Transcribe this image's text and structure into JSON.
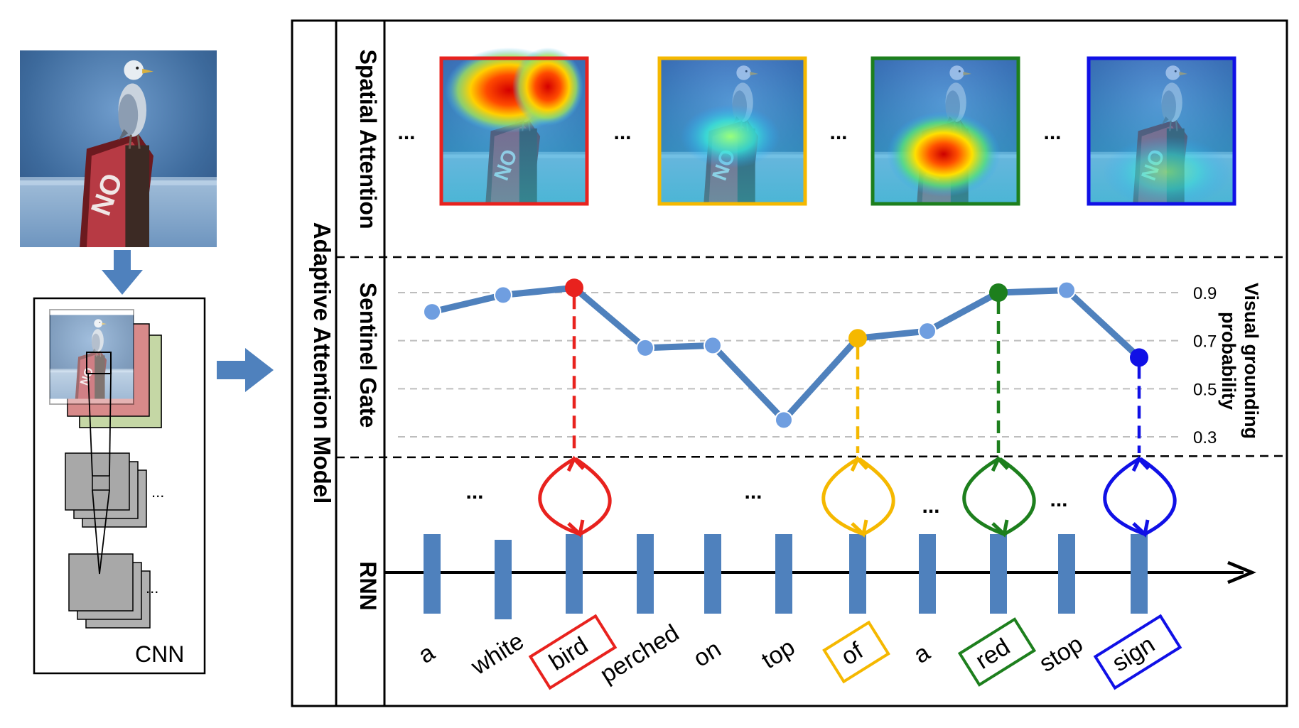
{
  "labels": {
    "cnn": "CNN",
    "model": "Adaptive  Attention  Model",
    "spatial": "Spatial Attention",
    "sentinel": "Sentinel Gate",
    "rnn": "RNN",
    "axis_line1": "Visual  grounding",
    "axis_line2": "probability",
    "ellipsis": "...",
    "ellipsis_small": "..."
  },
  "chart_data": {
    "type": "line",
    "title": "Sentinel Gate",
    "ylabel": "Visual grounding probability",
    "yticks": [
      "0.9",
      "0.7",
      "0.5",
      "0.3"
    ],
    "ytick_values": [
      0.9,
      0.7,
      0.5,
      0.3
    ],
    "ylim": [
      0.3,
      0.9
    ],
    "categories": [
      "a",
      "white",
      "bird",
      "perched",
      "on",
      "top",
      "of",
      "a",
      "red",
      "stop",
      "sign"
    ],
    "values": [
      0.82,
      0.89,
      0.92,
      0.67,
      0.68,
      0.37,
      0.71,
      0.74,
      0.9,
      0.91,
      0.63
    ],
    "highlighted": [
      {
        "index": 2,
        "word": "bird",
        "color": "#e8221e"
      },
      {
        "index": 6,
        "word": "of",
        "color": "#f5b800"
      },
      {
        "index": 8,
        "word": "red",
        "color": "#1d7f1d"
      },
      {
        "index": 10,
        "word": "sign",
        "color": "#1010e6"
      }
    ],
    "line_color": "#4f81bd",
    "point_color": "#6f9ee0"
  }
}
